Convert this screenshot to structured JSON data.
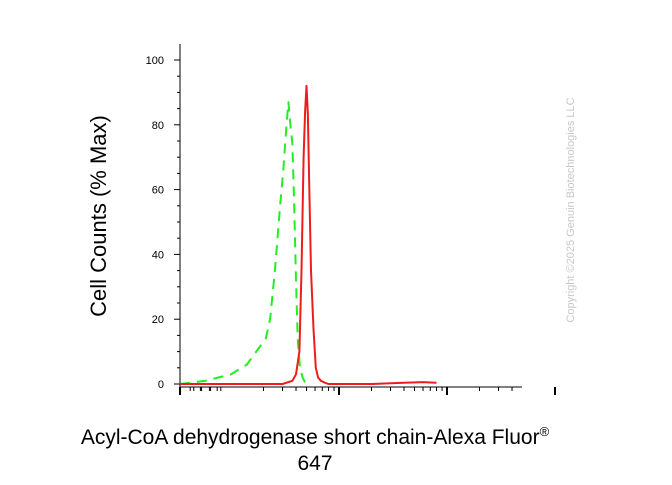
{
  "chart_data": {
    "type": "line",
    "title": "",
    "xlabel": "Acyl-CoA dehydrogenase short chain-Alexa Fluor",
    "xlabel_superscript": "®",
    "xlabel_line2": "647",
    "ylabel": "Cell Counts (% Max)",
    "x_scale": "log",
    "x_tick_labels": [],
    "ylim": [
      0,
      100
    ],
    "yticks": [
      0,
      20,
      40,
      60,
      80,
      100
    ],
    "grid": false,
    "legend": "none",
    "series": [
      {
        "style": "dashed",
        "color": "#22ee22",
        "x": [
          0.0,
          0.5,
          1.0,
          1.4,
          1.8,
          2.1,
          2.3,
          2.55,
          2.85,
          3.05,
          3.25,
          3.4,
          3.55,
          3.7,
          3.85,
          4.0,
          4.15,
          4.35,
          4.6,
          4.85,
          5.1,
          5.4
        ],
        "y": [
          0,
          1,
          3,
          6,
          11,
          14,
          20,
          35,
          55,
          66,
          79,
          87,
          80,
          74,
          55,
          32,
          14,
          5,
          2,
          0.5,
          0,
          0
        ]
      },
      {
        "style": "solid",
        "color": "#ee1c1c",
        "x": [
          0.0,
          1.5,
          3.0,
          3.7,
          4.0,
          4.3,
          4.5,
          4.7,
          4.85,
          5.0,
          5.15,
          5.3,
          5.5,
          5.8,
          6.1,
          6.4,
          6.8,
          7.3,
          8,
          10,
          20,
          40,
          60,
          80
        ],
        "y": [
          0,
          0,
          0,
          1,
          3,
          10,
          35,
          70,
          84,
          92,
          83,
          62,
          35,
          17,
          5,
          2,
          1,
          0.5,
          0,
          0,
          0,
          0.4,
          0.6,
          0.4
        ]
      }
    ]
  },
  "copyright": "Copyright ©2025 Genuin Biotechnologies LLC"
}
